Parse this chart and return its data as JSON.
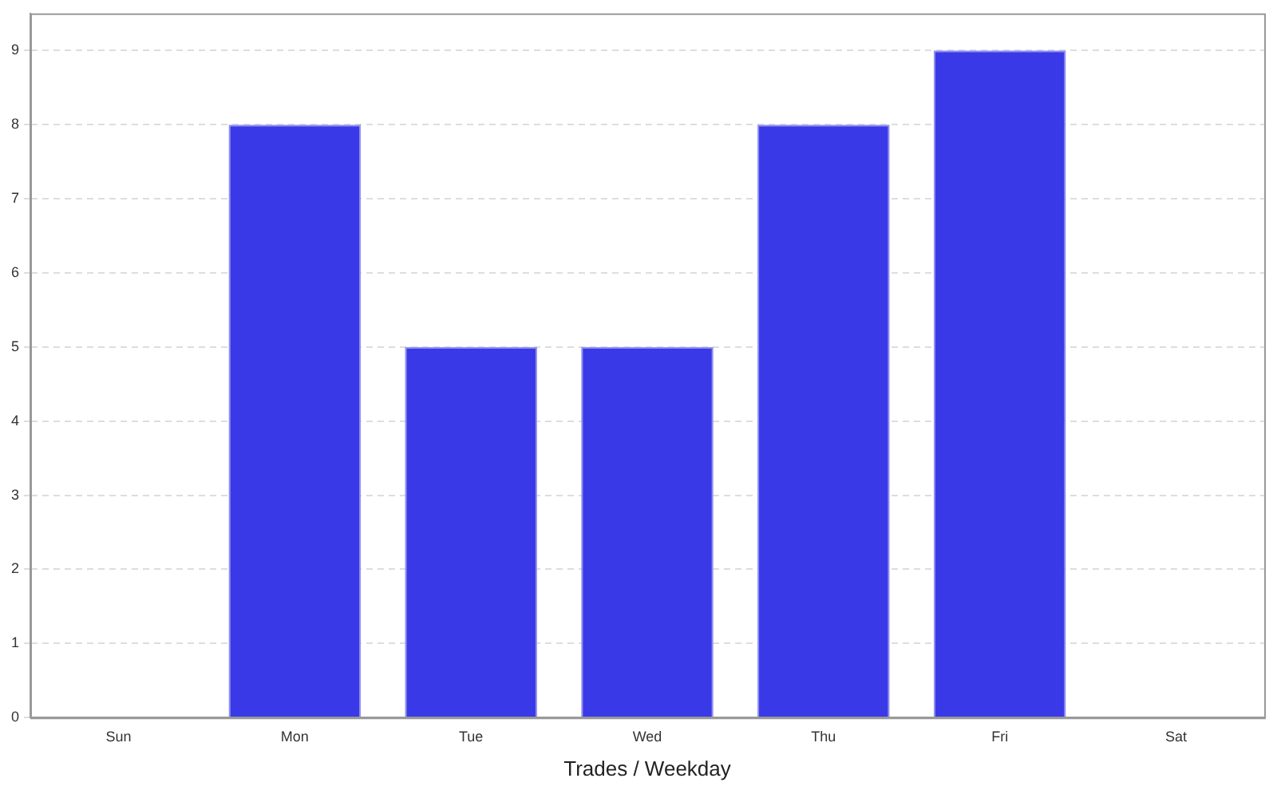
{
  "chart_data": {
    "type": "bar",
    "xlabel": "Trades / Weekday",
    "categories": [
      "Sun",
      "Mon",
      "Tue",
      "Wed",
      "Thu",
      "Fri",
      "Sat"
    ],
    "values": [
      0,
      8,
      5,
      5,
      8,
      9,
      0
    ],
    "color": "#3939e8",
    "ylim": [
      0,
      9.5
    ],
    "yticks": [
      0,
      1,
      2,
      3,
      4,
      5,
      6,
      7,
      8,
      9
    ],
    "grid": "y",
    "legend": false
  }
}
